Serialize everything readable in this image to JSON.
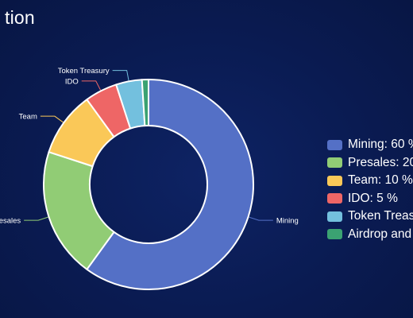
{
  "header": {
    "title": "tion"
  },
  "legend": {
    "items": [
      {
        "label": "Mining: 60 %",
        "color": "#5470c6"
      },
      {
        "label": "Presales: 20",
        "color": "#91cc75"
      },
      {
        "label": "Team: 10 %",
        "color": "#fac858"
      },
      {
        "label": "IDO: 5 %",
        "color": "#ee6666"
      },
      {
        "label": "Token Treas",
        "color": "#73c0de"
      },
      {
        "label": "Airdrop and",
        "color": "#3ba272"
      }
    ]
  },
  "chart_data": {
    "type": "pie",
    "donut": true,
    "title": "",
    "slices": [
      {
        "label": "Mining",
        "value": 60,
        "color": "#5470c6"
      },
      {
        "label": "Presales",
        "value": 20,
        "color": "#91cc75"
      },
      {
        "label": "Team",
        "value": 10,
        "color": "#fac858"
      },
      {
        "label": "IDO",
        "value": 5,
        "color": "#ee6666"
      },
      {
        "label": "Token Treasury",
        "value": 4,
        "color": "#73c0de"
      },
      {
        "label": "",
        "value": 1,
        "color": "#3ba272"
      }
    ],
    "legend_position": "right"
  }
}
